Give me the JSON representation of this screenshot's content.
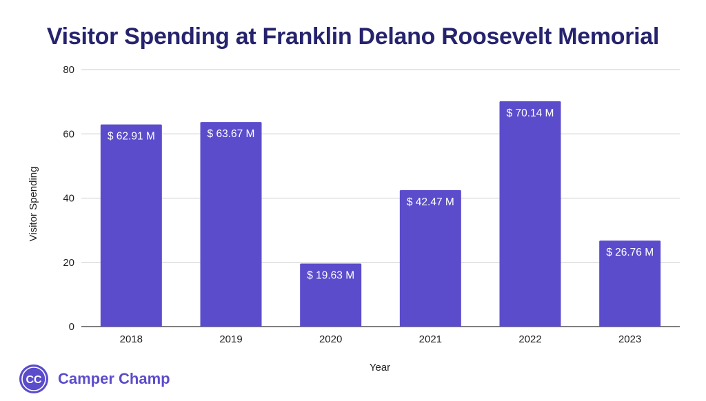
{
  "chart_data": {
    "type": "bar",
    "title": "Visitor Spending at Franklin Delano Roosevelt Memorial",
    "xlabel": "Year",
    "ylabel": "Visitor Spending",
    "categories": [
      "2018",
      "2019",
      "2020",
      "2021",
      "2022",
      "2023"
    ],
    "values": [
      62.91,
      63.67,
      19.63,
      42.47,
      70.14,
      26.76
    ],
    "data_labels": [
      "$ 62.91 M",
      "$ 63.67 M",
      "$ 19.63 M",
      "$ 42.47 M",
      "$ 70.14 M",
      "$ 26.76 M"
    ],
    "ylim": [
      0,
      80
    ],
    "yticks": [
      0,
      20,
      40,
      60,
      80
    ],
    "grid": true,
    "bar_color": "#5b4ccc"
  },
  "brand": {
    "name": "Camper Champ",
    "logo_text": "CC",
    "color": "#5b4ccc"
  }
}
